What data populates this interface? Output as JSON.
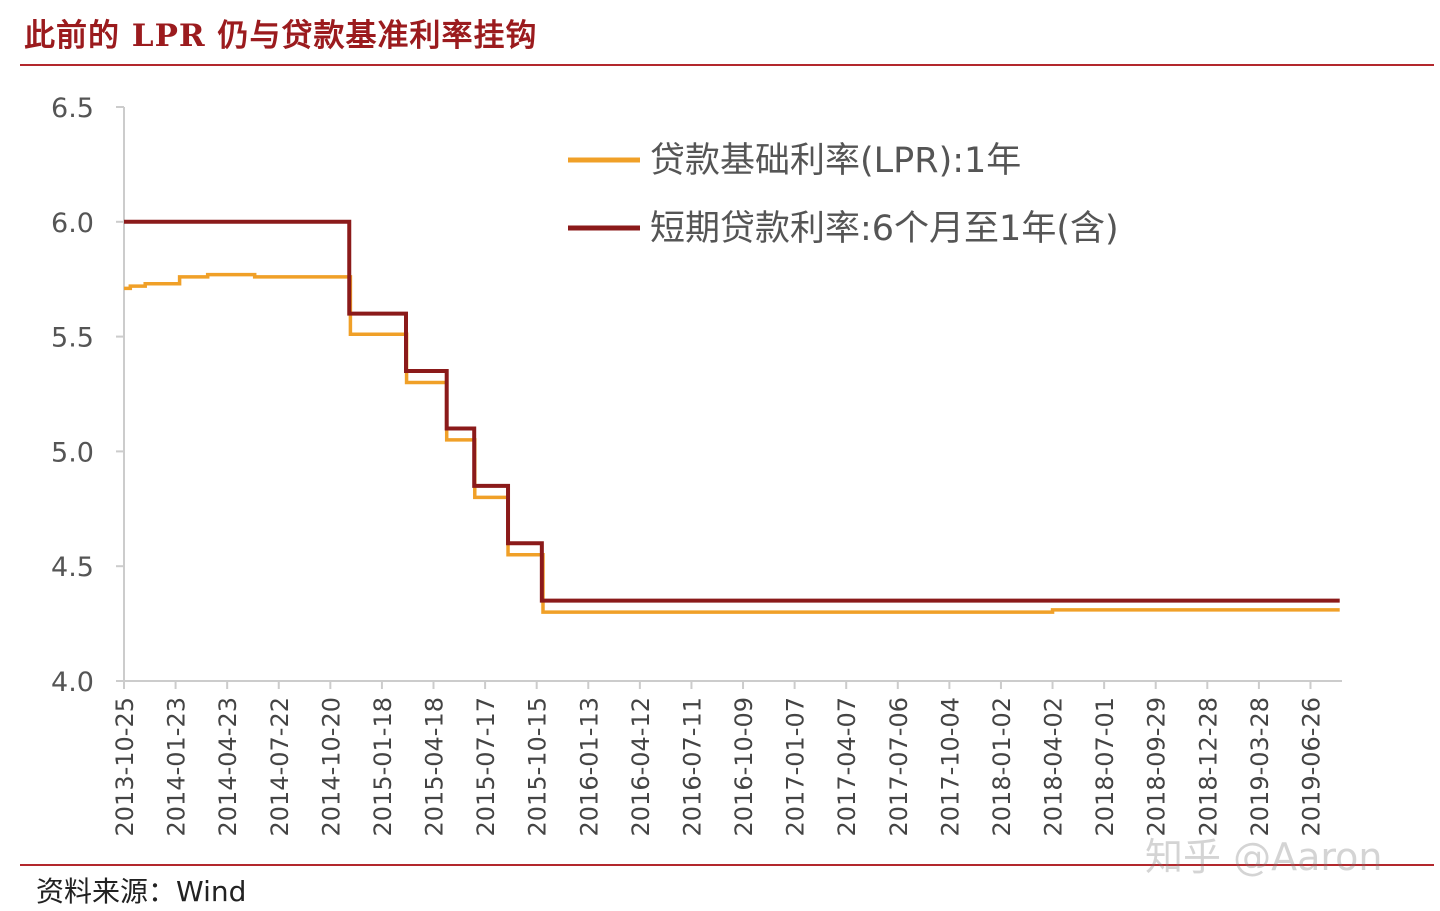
{
  "header": {
    "title": "此前的 LPR 仍与贷款基准利率挂钩"
  },
  "footer": {
    "source_label": "资料来源：",
    "source_value": "Wind"
  },
  "watermark": "知乎 @Aaron",
  "colors": {
    "lpr": "#f0a028",
    "benchmark": "#8b1a1a",
    "rule": "#b3282d",
    "axis": "#cccccc"
  },
  "chart_data": {
    "type": "line",
    "x_axis_type": "date",
    "xlim": [
      "2013-10-25",
      "2019-08-20"
    ],
    "ylim": [
      4.0,
      6.5
    ],
    "yticks": [
      "4.0",
      "4.5",
      "5.0",
      "5.5",
      "6.0",
      "6.5"
    ],
    "xticks": [
      "2013-10-25",
      "2014-01-23",
      "2014-04-23",
      "2014-07-22",
      "2014-10-20",
      "2015-01-18",
      "2015-04-18",
      "2015-07-17",
      "2015-10-15",
      "2016-01-13",
      "2016-04-12",
      "2016-07-11",
      "2016-10-09",
      "2017-01-07",
      "2017-04-07",
      "2017-07-06",
      "2017-10-04",
      "2018-01-02",
      "2018-04-02",
      "2018-07-01",
      "2018-09-29",
      "2018-12-28",
      "2019-03-28",
      "2019-06-26"
    ],
    "legend_position": "top-right",
    "series": [
      {
        "name": "贷款基础利率(LPR):1年",
        "color": "#f0a028",
        "step": true,
        "points": [
          [
            "2013-10-25",
            5.71
          ],
          [
            "2013-11-05",
            5.72
          ],
          [
            "2013-12-01",
            5.73
          ],
          [
            "2014-01-30",
            5.76
          ],
          [
            "2014-03-20",
            5.77
          ],
          [
            "2014-06-10",
            5.76
          ],
          [
            "2014-11-24",
            5.51
          ],
          [
            "2015-03-02",
            5.3
          ],
          [
            "2015-05-11",
            5.05
          ],
          [
            "2015-06-29",
            4.8
          ],
          [
            "2015-08-26",
            4.55
          ],
          [
            "2015-10-26",
            4.3
          ],
          [
            "2018-04-02",
            4.31
          ],
          [
            "2019-08-16",
            4.31
          ]
        ]
      },
      {
        "name": "短期贷款利率:6个月至1年(含)",
        "color": "#8b1a1a",
        "step": true,
        "points": [
          [
            "2013-10-25",
            6.0
          ],
          [
            "2014-11-22",
            5.6
          ],
          [
            "2015-03-01",
            5.35
          ],
          [
            "2015-05-11",
            5.1
          ],
          [
            "2015-06-28",
            4.85
          ],
          [
            "2015-08-26",
            4.6
          ],
          [
            "2015-10-24",
            4.35
          ],
          [
            "2019-08-16",
            4.35
          ]
        ]
      }
    ]
  }
}
